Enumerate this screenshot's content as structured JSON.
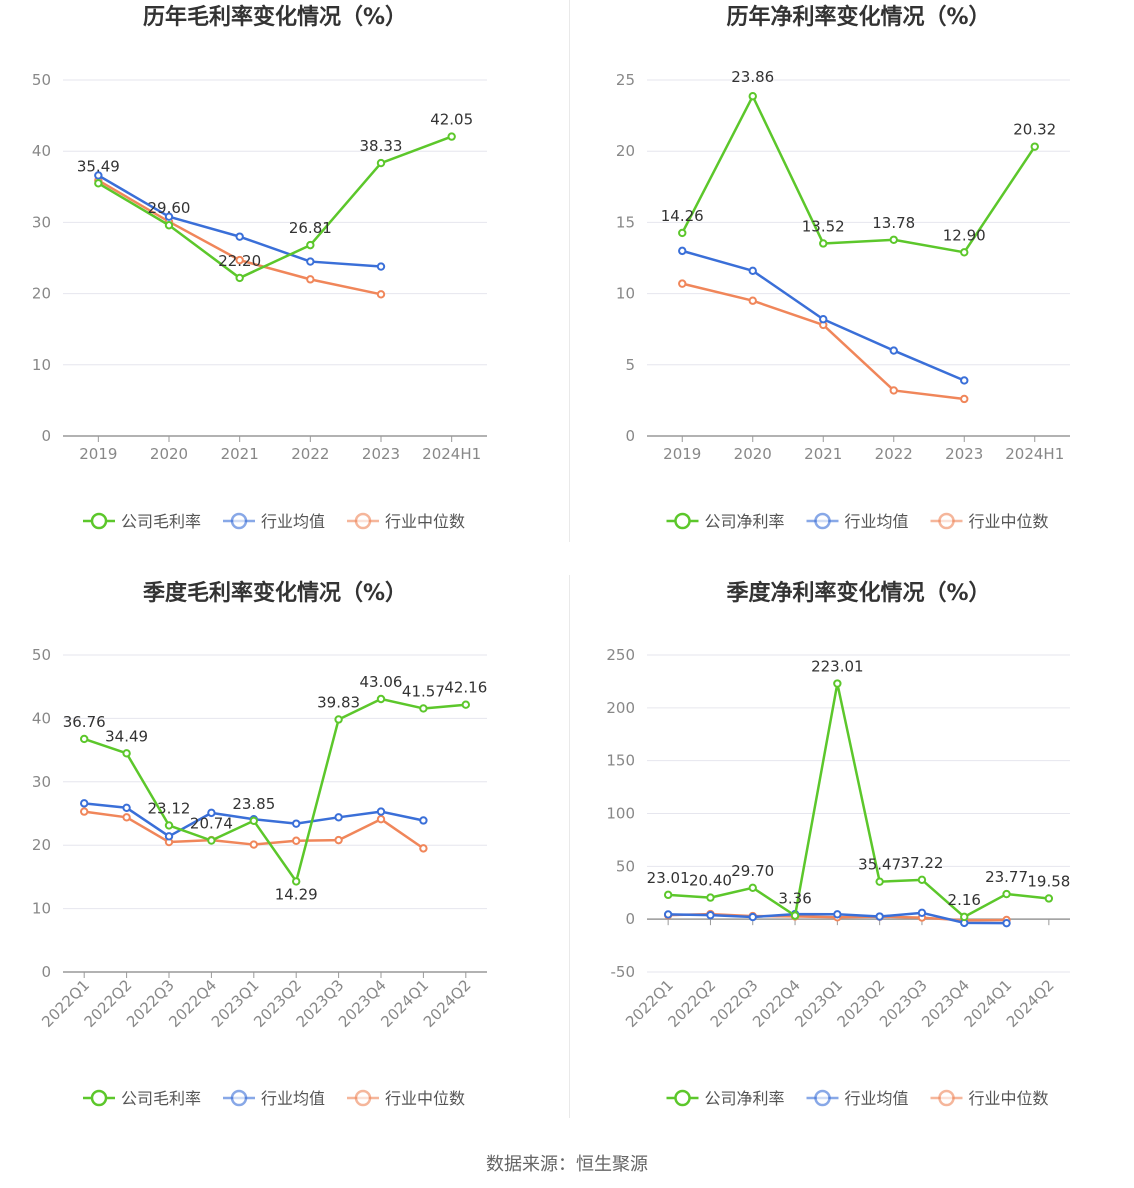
{
  "colors": {
    "company": "#5cc72b",
    "avg": "#3a6fd8",
    "median": "#f0865a",
    "grid": "#e6e6ee",
    "axis": "#999999"
  },
  "source": "数据来源：恒生聚源",
  "chart_data": [
    {
      "type": "line",
      "title": "历年毛利率变化情况（%）",
      "categories": [
        "2019",
        "2020",
        "2021",
        "2022",
        "2023",
        "2024H1"
      ],
      "ylim": [
        0,
        50
      ],
      "yticks": [
        0,
        10,
        20,
        30,
        40,
        50
      ],
      "grid": true,
      "legend_position": "bottom-center",
      "series": [
        {
          "name": "公司毛利率",
          "key": "company",
          "values": [
            35.49,
            29.6,
            22.2,
            26.81,
            38.33,
            42.05
          ],
          "labels": [
            "35.49",
            "29.60",
            "22.20",
            "26.81",
            "38.33",
            "42.05"
          ]
        },
        {
          "name": "行业均值",
          "key": "avg",
          "values": [
            36.6,
            30.8,
            28.0,
            24.5,
            23.8,
            null
          ]
        },
        {
          "name": "行业中位数",
          "key": "median",
          "values": [
            35.9,
            30.1,
            24.7,
            22.0,
            19.9,
            null
          ]
        }
      ]
    },
    {
      "type": "line",
      "title": "历年净利率变化情况（%）",
      "categories": [
        "2019",
        "2020",
        "2021",
        "2022",
        "2023",
        "2024H1"
      ],
      "ylim": [
        0,
        25
      ],
      "yticks": [
        0,
        5,
        10,
        15,
        20,
        25
      ],
      "grid": true,
      "legend_position": "bottom-center",
      "series": [
        {
          "name": "公司净利率",
          "key": "company",
          "values": [
            14.26,
            23.86,
            13.52,
            13.78,
            12.9,
            20.32
          ],
          "labels": [
            "14.26",
            "23.86",
            "13.52",
            "13.78",
            "12.90",
            "20.32"
          ]
        },
        {
          "name": "行业均值",
          "key": "avg",
          "values": [
            13.0,
            11.6,
            8.2,
            6.0,
            3.9,
            null
          ]
        },
        {
          "name": "行业中位数",
          "key": "median",
          "values": [
            10.7,
            9.5,
            7.8,
            3.2,
            2.6,
            null
          ]
        }
      ]
    },
    {
      "type": "line",
      "title": "季度毛利率变化情况（%）",
      "categories": [
        "2022Q1",
        "2022Q2",
        "2022Q3",
        "2022Q4",
        "2023Q1",
        "2023Q2",
        "2023Q3",
        "2023Q4",
        "2024Q1",
        "2024Q2"
      ],
      "ylim": [
        0,
        50
      ],
      "yticks": [
        0,
        10,
        20,
        30,
        40,
        50
      ],
      "grid": true,
      "rotate_x": true,
      "legend_position": "bottom-center",
      "series": [
        {
          "name": "公司毛利率",
          "key": "company",
          "values": [
            36.76,
            34.49,
            23.12,
            20.74,
            23.85,
            14.29,
            39.83,
            43.06,
            41.57,
            42.16
          ],
          "labels": [
            "36.76",
            "34.49",
            "23.12",
            "20.74",
            "23.85",
            "14.29",
            "39.83",
            "43.06",
            "41.57",
            "42.16"
          ]
        },
        {
          "name": "行业均值",
          "key": "avg",
          "values": [
            26.6,
            25.9,
            21.4,
            25.1,
            24.1,
            23.4,
            24.4,
            25.3,
            23.9,
            null
          ]
        },
        {
          "name": "行业中位数",
          "key": "median",
          "values": [
            25.3,
            24.4,
            20.5,
            20.8,
            20.1,
            20.7,
            20.8,
            24.1,
            19.5,
            null
          ]
        }
      ]
    },
    {
      "type": "line",
      "title": "季度净利率变化情况（%）",
      "categories": [
        "2022Q1",
        "2022Q2",
        "2022Q3",
        "2022Q4",
        "2023Q1",
        "2023Q2",
        "2023Q3",
        "2023Q4",
        "2024Q1",
        "2024Q2"
      ],
      "ylim": [
        -50,
        250
      ],
      "yticks": [
        -50,
        0,
        50,
        100,
        150,
        200,
        250
      ],
      "grid": true,
      "rotate_x": true,
      "legend_position": "bottom-center",
      "series": [
        {
          "name": "公司净利率",
          "key": "company",
          "values": [
            23.01,
            20.4,
            29.7,
            3.36,
            223.01,
            35.47,
            37.22,
            2.16,
            23.77,
            19.58
          ],
          "labels": [
            "23.01",
            "20.40",
            "29.70",
            "3.36",
            "223.01",
            "35.47",
            "37.22",
            "2.16",
            "23.77",
            "19.58"
          ]
        },
        {
          "name": "行业均值",
          "key": "avg",
          "values": [
            4.5,
            3.8,
            2.0,
            4.8,
            4.6,
            2.5,
            6.0,
            -3.5,
            -3.8,
            null
          ]
        },
        {
          "name": "行业中位数",
          "key": "median",
          "values": [
            3.8,
            4.8,
            2.9,
            2.6,
            1.8,
            2.3,
            1.5,
            -1.2,
            -0.8,
            null
          ]
        }
      ]
    }
  ]
}
